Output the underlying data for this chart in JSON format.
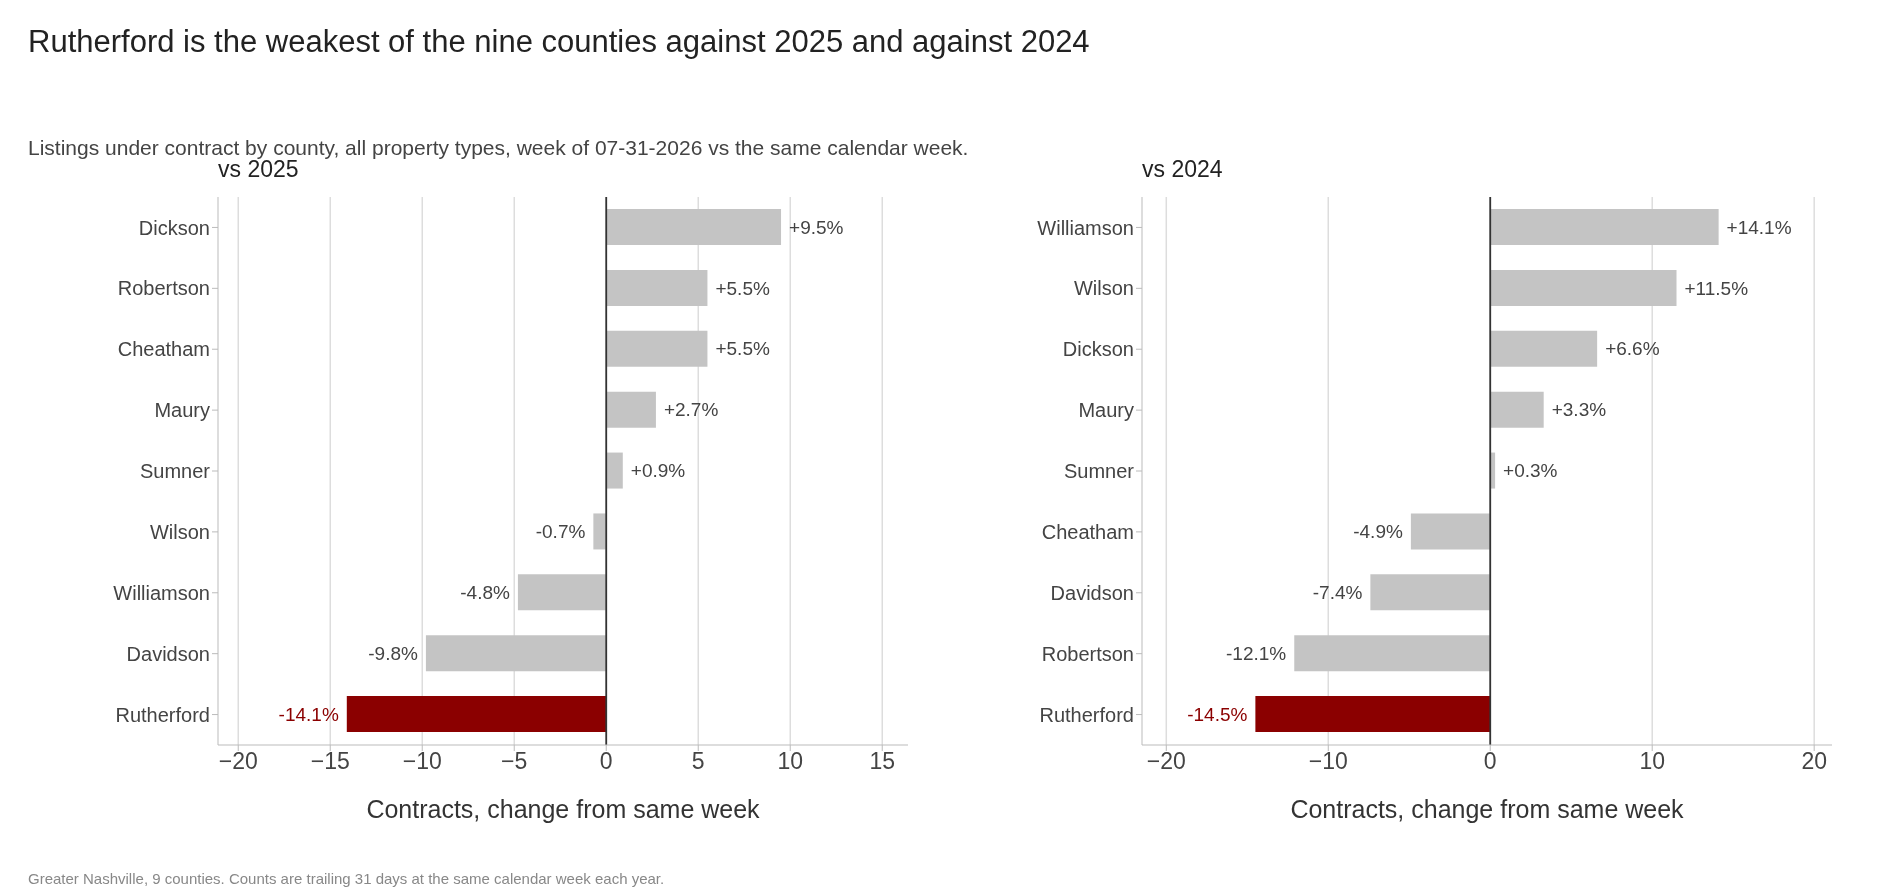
{
  "chart_data": [
    {
      "type": "other",
      "title": "Rutherford is the weakest of the nine counties against 2025 and against 2024",
      "subtitle": "Listings under contract by county, all property types, week of 07-31-2026 vs the same calendar week.",
      "annotations": [
        "Greater Nashville, 9 counties. Counts are trailing 31 days at the same calendar week each year."
      ]
    },
    {
      "type": "bar",
      "orientation": "horizontal",
      "title": "vs 2025",
      "xlabel": "Contracts, change from same week",
      "categories": [
        "Dickson",
        "Robertson",
        "Cheatham",
        "Maury",
        "Sumner",
        "Wilson",
        "Williamson",
        "Davidson",
        "Rutherford"
      ],
      "values": [
        9.5,
        5.5,
        5.5,
        2.7,
        0.9,
        -0.7,
        -4.8,
        -9.8,
        -14.1
      ],
      "value_labels": [
        "+9.5%",
        "+5.5%",
        "+5.5%",
        "+2.7%",
        "+0.9%",
        "-0.7%",
        "-4.8%",
        "-9.8%",
        "-14.1%"
      ],
      "color": "#c4c4c4",
      "colors": [
        "#c4c4c4",
        "#c4c4c4",
        "#c4c4c4",
        "#c4c4c4",
        "#c4c4c4",
        "#c4c4c4",
        "#c4c4c4",
        "#c4c4c4",
        "#8b0000"
      ],
      "xlim": [
        -21.1,
        16.4
      ],
      "xticks": [
        {
          "value": -20,
          "label": "−20"
        },
        {
          "value": -15,
          "label": "−15"
        },
        {
          "value": -10,
          "label": "−10"
        },
        {
          "value": -5,
          "label": "−5"
        },
        0,
        5,
        10,
        15
      ],
      "grid": "x",
      "legend": false,
      "ref_lines": [
        {
          "axis": "x",
          "value": 0,
          "color": "#333333"
        }
      ]
    },
    {
      "type": "bar",
      "orientation": "horizontal",
      "title": "vs 2024",
      "xlabel": "Contracts, change from same week",
      "categories": [
        "Williamson",
        "Wilson",
        "Dickson",
        "Maury",
        "Sumner",
        "Cheatham",
        "Davidson",
        "Robertson",
        "Rutherford"
      ],
      "values": [
        14.1,
        11.5,
        6.6,
        3.3,
        0.3,
        -4.9,
        -7.4,
        -12.1,
        -14.5
      ],
      "value_labels": [
        "+14.1%",
        "+11.5%",
        "+6.6%",
        "+3.3%",
        "+0.3%",
        "-4.9%",
        "-7.4%",
        "-12.1%",
        "-14.5%"
      ],
      "color": "#c4c4c4",
      "colors": [
        "#c4c4c4",
        "#c4c4c4",
        "#c4c4c4",
        "#c4c4c4",
        "#c4c4c4",
        "#c4c4c4",
        "#c4c4c4",
        "#c4c4c4",
        "#8b0000"
      ],
      "xlim": [
        -21.5,
        21.1
      ],
      "xticks": [
        {
          "value": -20,
          "label": "−20"
        },
        {
          "value": -10,
          "label": "−10"
        },
        0,
        10,
        20
      ],
      "grid": "x",
      "legend": false,
      "ref_lines": [
        {
          "axis": "x",
          "value": 0,
          "color": "#333333"
        }
      ]
    }
  ]
}
